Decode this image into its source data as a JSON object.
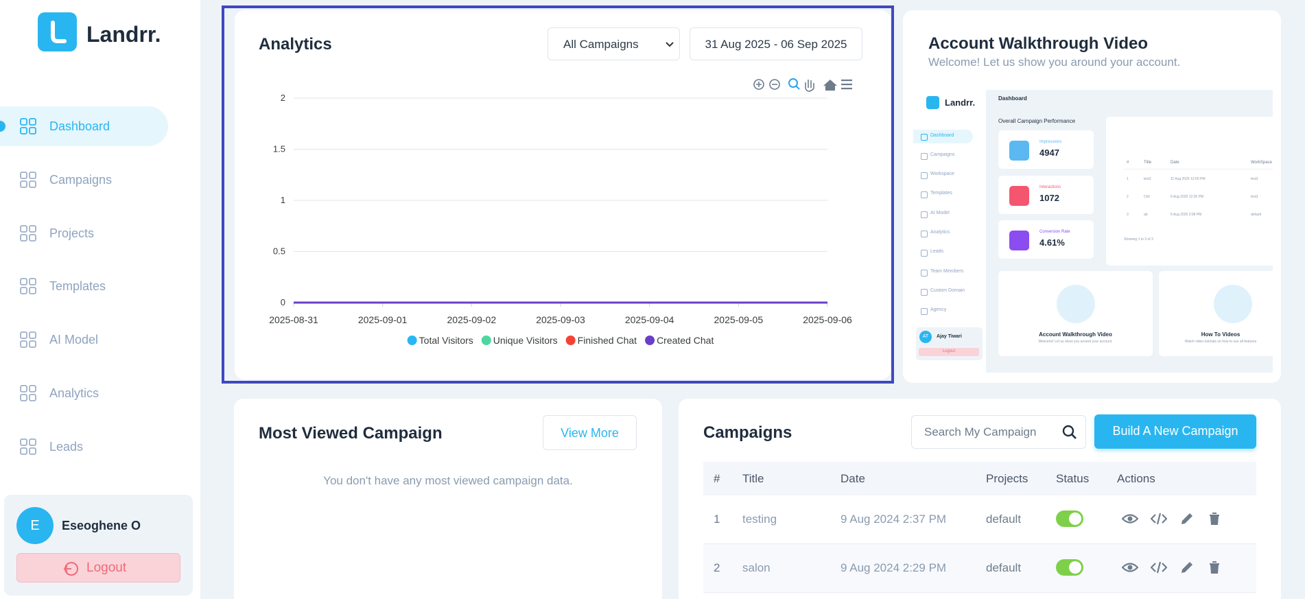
{
  "sidebar": {
    "brand": "Landrr.",
    "nav": [
      "Dashboard",
      "Campaigns",
      "Projects",
      "Templates",
      "AI Model",
      "Analytics",
      "Leads"
    ],
    "user": {
      "initial": "E",
      "name": "Eseoghene O"
    },
    "logout": "Logout"
  },
  "analytics": {
    "title": "Analytics",
    "campaign_filter": "All Campaigns",
    "date_range": "31 Aug 2025 - 06 Sep 2025",
    "chart": {
      "type": "line",
      "categories": [
        "2025-08-31",
        "2025-09-01",
        "2025-09-02",
        "2025-09-03",
        "2025-09-04",
        "2025-09-05",
        "2025-09-06"
      ],
      "series": [
        {
          "name": "Total Visitors",
          "color": "#29b6f6",
          "values": [
            0,
            0,
            0,
            0,
            0,
            0,
            0
          ]
        },
        {
          "name": "Unique Visitors",
          "color": "#4cd7a0",
          "values": [
            0,
            0,
            0,
            0,
            0,
            0,
            0
          ]
        },
        {
          "name": "Finished Chat",
          "color": "#f44336",
          "values": [
            0,
            0,
            0,
            0,
            0,
            0,
            0
          ]
        },
        {
          "name": "Created Chat",
          "color": "#6a3fc8",
          "values": [
            0,
            0,
            0,
            0,
            0,
            0,
            0
          ]
        }
      ],
      "ylim": [
        0,
        2
      ],
      "yticks": [
        0,
        0.5,
        1,
        1.5,
        2
      ],
      "grid": true,
      "legend": "bottom"
    }
  },
  "walkthrough": {
    "title": "Account Walkthrough Video",
    "subtitle": "Welcome! Let us show you around your account.",
    "preview": {
      "brand": "Landrr.",
      "nav": [
        "Dashboard",
        "Campaigns",
        "Workspace",
        "Templates",
        "AI Model",
        "Analytics",
        "Leads",
        "Team Members",
        "Custom Domain",
        "Agency"
      ],
      "user": {
        "initials": "AT",
        "name": "Ajay Tiwari"
      },
      "logout": "Logout",
      "heading": "Dashboard",
      "section": "Overall Campaign Performance",
      "stats": [
        {
          "label": "Impressions",
          "value": "4947"
        },
        {
          "label": "Interactions",
          "value": "1072"
        },
        {
          "label": "Conversion Rate",
          "value": "4.61%"
        }
      ],
      "table": {
        "columns": [
          "#",
          "Title",
          "Date",
          "WorkSpace"
        ],
        "rows": [
          [
            "1",
            "test1",
            "11 Aug 2025 12:00 PM",
            "test1"
          ],
          [
            "2",
            "Chil",
            "6 Aug 2025 12:26 PM",
            "test1"
          ],
          [
            "3",
            "ab",
            "5 Aug 2025 2:08 PM",
            "default"
          ]
        ],
        "footer": "Showing 1 to 3 of 3"
      },
      "cards": [
        {
          "title": "Account Walkthrough Video",
          "subtitle": "Welcome! Let us show you around your account."
        },
        {
          "title": "How To Videos",
          "subtitle": "Watch video tutorials on how to use all features"
        }
      ]
    }
  },
  "most_viewed": {
    "title": "Most Viewed Campaign",
    "button": "View More",
    "empty": "You don't have any most viewed campaign data."
  },
  "campaigns": {
    "title": "Campaigns",
    "search_placeholder": "Search My Campaign",
    "button": "Build A New Campaign",
    "columns": [
      "#",
      "Title",
      "Date",
      "Projects",
      "Status",
      "Actions"
    ],
    "rows": [
      [
        "1",
        "testing",
        "9 Aug 2024 2:37 PM",
        "default"
      ],
      [
        "2",
        "salon",
        "9 Aug 2024 2:29 PM",
        "default"
      ]
    ]
  }
}
